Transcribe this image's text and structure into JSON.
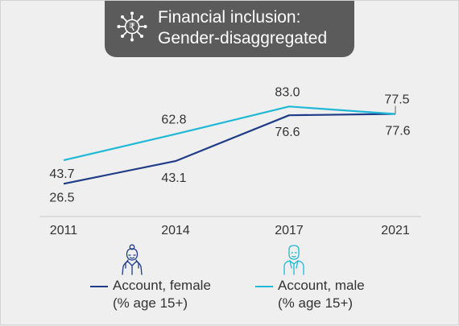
{
  "title": {
    "line1": "Financial inclusion:",
    "line2": "Gender-disaggregated",
    "icon": "rupee-network-icon"
  },
  "colors": {
    "female": "#1f3c88",
    "male": "#1fb8d6",
    "title_bg": "#5b5b5b",
    "background": "#efefef"
  },
  "chart_data": {
    "type": "line",
    "categories": [
      "2011",
      "2014",
      "2017",
      "2021"
    ],
    "series": [
      {
        "name": "Account, female (% age 15+)",
        "values": [
          26.5,
          43.1,
          76.6,
          77.6
        ]
      },
      {
        "name": "Account, male (% age 15+)",
        "values": [
          43.7,
          62.8,
          83.0,
          77.5
        ]
      }
    ],
    "labels": {
      "female": [
        "26.5",
        "43.1",
        "76.6",
        "77.6"
      ],
      "male": [
        "43.7",
        "62.8",
        "83.0",
        "77.5"
      ]
    },
    "title": "Financial inclusion: Gender-disaggregated",
    "xlabel": "",
    "ylabel": "",
    "ylim": [
      0,
      100
    ],
    "grid": false,
    "legend": "bottom"
  },
  "legend": {
    "female": {
      "line1": "Account, female",
      "line2": "(% age 15+)",
      "icon": "woman-icon"
    },
    "male": {
      "line1": "Account, male",
      "line2": "(% age 15+)",
      "icon": "man-icon"
    }
  }
}
